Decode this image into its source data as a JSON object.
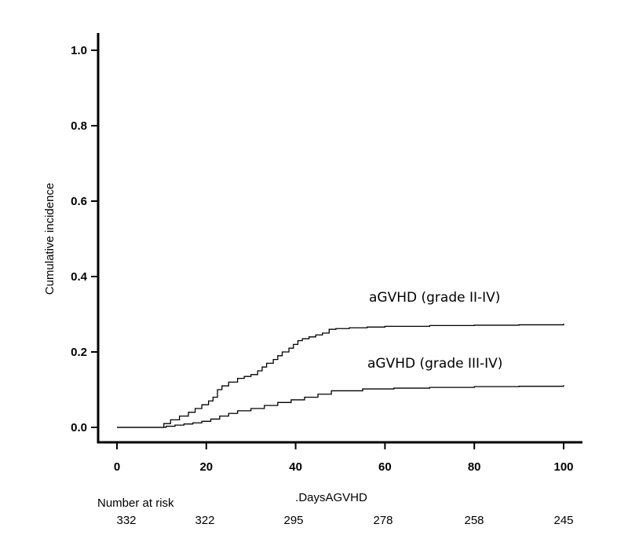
{
  "chart_data": {
    "type": "line",
    "title": "",
    "xlabel": ".DaysAGVHD",
    "ylabel": "Cumulative incidence",
    "xlim": [
      0,
      100
    ],
    "ylim": [
      0,
      1.0
    ],
    "xticks": [
      0,
      20,
      40,
      60,
      80,
      100
    ],
    "xtick_labels": [
      "0",
      "20",
      "40",
      "60",
      "80",
      "100"
    ],
    "yticks": [
      0,
      0.2,
      0.4,
      0.6,
      0.8,
      1.0
    ],
    "ytick_labels": [
      "0.0",
      "0.2",
      "0.4",
      "0.6",
      "0.8",
      "1.0"
    ],
    "grid": false,
    "series": [
      {
        "name": "aGVHD (grade II-IV)",
        "x": [
          0,
          9.5,
          10.5,
          12,
          14,
          16,
          17.5,
          19,
          20.5,
          21.5,
          22.5,
          23.5,
          25,
          27,
          28.5,
          30,
          31.5,
          32.5,
          33.5,
          35,
          36,
          37,
          38.5,
          39.5,
          40.5,
          41.5,
          43,
          44.5,
          46,
          47.5,
          49,
          52,
          56,
          60,
          70,
          80,
          90,
          100
        ],
        "y": [
          0,
          0.0,
          0.01,
          0.02,
          0.03,
          0.04,
          0.05,
          0.06,
          0.07,
          0.08,
          0.1,
          0.11,
          0.12,
          0.13,
          0.135,
          0.14,
          0.15,
          0.16,
          0.17,
          0.18,
          0.19,
          0.2,
          0.21,
          0.22,
          0.23,
          0.235,
          0.24,
          0.245,
          0.25,
          0.26,
          0.262,
          0.264,
          0.266,
          0.268,
          0.27,
          0.271,
          0.272,
          0.275
        ]
      },
      {
        "name": "aGVHD (grade III-IV)",
        "x": [
          0,
          6,
          11,
          13,
          15,
          17,
          19,
          21,
          23,
          25,
          27,
          30,
          33,
          36,
          39,
          42,
          45,
          48,
          55,
          62,
          70,
          80,
          90,
          100
        ],
        "y": [
          0,
          0.0,
          0.003,
          0.006,
          0.009,
          0.012,
          0.016,
          0.022,
          0.03,
          0.037,
          0.044,
          0.05,
          0.058,
          0.066,
          0.073,
          0.08,
          0.088,
          0.097,
          0.102,
          0.104,
          0.106,
          0.108,
          0.109,
          0.112
        ]
      }
    ],
    "number_at_risk": {
      "label": "Number at risk",
      "values": [
        "332",
        "322",
        "295",
        "278",
        "258",
        "245"
      ]
    }
  }
}
